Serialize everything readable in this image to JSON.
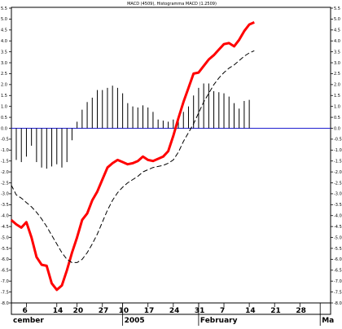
{
  "chart_data": {
    "type": "line",
    "title": "MACD (4509), Histogramma MACD (1.2509)",
    "x_ticks": [
      {
        "label": "6",
        "x": 2
      },
      {
        "label": "14",
        "x": 8
      },
      {
        "label": "20",
        "x": 12
      },
      {
        "label": "27",
        "x": 17
      },
      {
        "label": "10",
        "x": 21
      },
      {
        "label": "17",
        "x": 26
      },
      {
        "label": "24",
        "x": 31
      },
      {
        "label": "31",
        "x": 36
      },
      {
        "label": "7",
        "x": 41
      },
      {
        "label": "14",
        "x": 46
      },
      {
        "label": "21",
        "x": 51
      },
      {
        "label": "28",
        "x": 56
      }
    ],
    "x_period_labels": [
      {
        "label": "cember",
        "x": -1
      },
      {
        "label": "2005",
        "x": 21
      },
      {
        "label": "February",
        "x": 36
      },
      {
        "label": "Ma",
        "x": 60
      }
    ],
    "x_range": [
      -1,
      61
    ],
    "ylim": [
      -8.0,
      5.5
    ],
    "y_ticks": [
      "5.5",
      "5.0",
      "4.5",
      "4.0",
      "3.5",
      "3.0",
      "2.5",
      "2.0",
      "1.5",
      "1.0",
      "0.5",
      "0.0",
      "-0.5",
      "-1.0",
      "-1.5",
      "-2.0",
      "-2.5",
      "-3.0",
      "-3.5",
      "-4.0",
      "-4.5",
      "-5.0",
      "-5.5",
      "-6.0",
      "-6.5",
      "-7.0",
      "-7.5",
      "-8.0"
    ],
    "zero_line": 0.0,
    "grid": false,
    "series": [
      {
        "kind": "histogram",
        "color": "#000000",
        "x": [
          0,
          1,
          2,
          3,
          4,
          5,
          6,
          7,
          8,
          9,
          10,
          11,
          12,
          13,
          14,
          15,
          16,
          17,
          18,
          19,
          20,
          21,
          22,
          23,
          24,
          25,
          26,
          27,
          28,
          29,
          30,
          31,
          32,
          33,
          34,
          35,
          36,
          37,
          38,
          39,
          40,
          41,
          42,
          43,
          44,
          45,
          46
        ],
        "values": [
          -1.45,
          -1.55,
          -1.3,
          -0.8,
          -1.55,
          -1.8,
          -1.85,
          -1.75,
          -1.65,
          -1.8,
          -1.55,
          -0.55,
          0.3,
          0.85,
          1.2,
          1.4,
          1.75,
          1.75,
          1.85,
          1.95,
          1.85,
          1.6,
          1.15,
          1.0,
          0.95,
          1.05,
          0.95,
          0.75,
          0.4,
          0.35,
          0.3,
          0.4,
          0.45,
          0.75,
          1.0,
          1.5,
          1.85,
          2.05,
          2.05,
          1.7,
          1.65,
          1.6,
          1.45,
          1.15,
          0.9,
          1.25,
          1.3
        ]
      },
      {
        "kind": "line",
        "style": "solid",
        "color": "#ff0000",
        "x": [
          -1,
          0,
          1,
          2,
          3,
          4,
          5,
          6,
          7,
          8,
          9,
          10,
          11,
          12,
          13,
          14,
          15,
          16,
          17,
          18,
          19,
          20,
          21,
          22,
          23,
          24,
          25,
          26,
          27,
          28,
          29,
          30,
          31,
          32,
          33,
          34,
          35,
          36,
          37,
          38,
          39,
          40,
          41,
          42,
          43,
          44,
          45,
          46,
          47
        ],
        "values": [
          -4.2,
          -4.4,
          -4.55,
          -4.3,
          -5.0,
          -5.9,
          -6.25,
          -6.3,
          -7.1,
          -7.4,
          -7.2,
          -6.5,
          -5.7,
          -5.0,
          -4.2,
          -3.9,
          -3.3,
          -2.9,
          -2.35,
          -1.8,
          -1.6,
          -1.45,
          -1.55,
          -1.65,
          -1.6,
          -1.5,
          -1.3,
          -1.45,
          -1.5,
          -1.4,
          -1.3,
          -1.05,
          -0.35,
          0.45,
          1.2,
          1.85,
          2.5,
          2.55,
          2.85,
          3.15,
          3.35,
          3.6,
          3.85,
          3.9,
          3.75,
          4.05,
          4.45,
          4.75,
          4.85
        ]
      },
      {
        "kind": "line",
        "style": "dashed",
        "color": "#000000",
        "x": [
          -1,
          0,
          1,
          2,
          3,
          4,
          5,
          6,
          7,
          8,
          9,
          10,
          11,
          12,
          13,
          14,
          15,
          16,
          17,
          18,
          19,
          20,
          21,
          22,
          23,
          24,
          25,
          26,
          27,
          28,
          29,
          30,
          31,
          32,
          33,
          34,
          35,
          36,
          37,
          38,
          39,
          40,
          41,
          42,
          43,
          44,
          45,
          46,
          47
        ],
        "values": [
          -2.6,
          -3.05,
          -3.2,
          -3.4,
          -3.6,
          -3.85,
          -4.15,
          -4.5,
          -4.9,
          -5.3,
          -5.7,
          -6.0,
          -6.15,
          -6.15,
          -6.0,
          -5.7,
          -5.3,
          -4.85,
          -4.3,
          -3.75,
          -3.3,
          -2.95,
          -2.7,
          -2.5,
          -2.35,
          -2.2,
          -2.0,
          -1.9,
          -1.8,
          -1.75,
          -1.7,
          -1.6,
          -1.45,
          -1.1,
          -0.6,
          -0.2,
          0.2,
          0.7,
          1.2,
          1.6,
          2.0,
          2.3,
          2.55,
          2.75,
          2.9,
          3.1,
          3.3,
          3.45,
          3.55
        ]
      }
    ]
  }
}
